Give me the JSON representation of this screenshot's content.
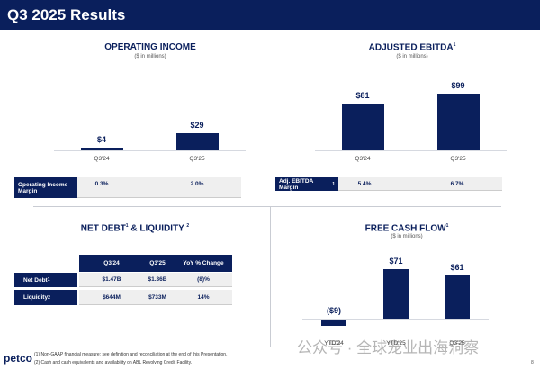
{
  "header": {
    "title": "Q3 2025 Results"
  },
  "chart_data": [
    {
      "id": "op",
      "type": "bar",
      "title": "OPERATING INCOME",
      "subtitle": "($ in millions)",
      "categories": [
        "Q3'24",
        "Q3'25"
      ],
      "values": [
        4,
        29
      ],
      "data_labels": [
        "$4",
        "$29"
      ],
      "ylim": [
        0,
        90
      ],
      "table": {
        "label": "Operating Income Margin",
        "values": [
          "0.3%",
          "2.0%"
        ]
      }
    },
    {
      "id": "ebitda",
      "type": "bar",
      "title": "ADJUSTED EBITDA",
      "title_sup": "1",
      "subtitle": "($ in millions)",
      "categories": [
        "Q3'24",
        "Q3'25"
      ],
      "values": [
        81,
        99
      ],
      "data_labels": [
        "$81",
        "$99"
      ],
      "ylim": [
        0,
        99
      ],
      "table": {
        "label": "Adj. EBITDA Margin",
        "label_sup": "1",
        "values": [
          "5.4%",
          "6.7%"
        ]
      }
    },
    {
      "id": "fcf",
      "type": "bar",
      "title": "FREE CASH FLOW",
      "title_sup": "1",
      "subtitle": "($ in millions)",
      "categories": [
        "YTD'24",
        "YTD'25",
        "Q3'25"
      ],
      "values": [
        -9,
        71,
        61
      ],
      "data_labels": [
        "($9)",
        "$71",
        "$61"
      ],
      "ylim": [
        -9,
        71
      ]
    }
  ],
  "net_debt": {
    "title": "NET DEBT",
    "title_sup1": "1",
    "title_mid": " & LIQUIDITY ",
    "title_sup2": "2",
    "columns": [
      "Q3'24",
      "Q3'25",
      "YoY % Change"
    ],
    "rows": [
      {
        "label": "Net Debt",
        "sup": "1",
        "values": [
          "$1.47B",
          "$1.36B",
          "(8)%"
        ]
      },
      {
        "label": "Liquidity",
        "sup": "2",
        "values": [
          "$644M",
          "$733M",
          "14%"
        ]
      }
    ]
  },
  "footer": {
    "logo": "petco",
    "footnotes": [
      "(1)   Non-GAAP financial measure; see definition and reconciliation at the end of this Presentation.",
      "(2)   Cash and cash equivalents and availability on ABL Revolving Credit Facility."
    ],
    "page": "8"
  },
  "watermark": "公众号 · 全球宠业出海洞察",
  "colors": {
    "navy": "#0a1f5c",
    "gray": "#efefef"
  }
}
